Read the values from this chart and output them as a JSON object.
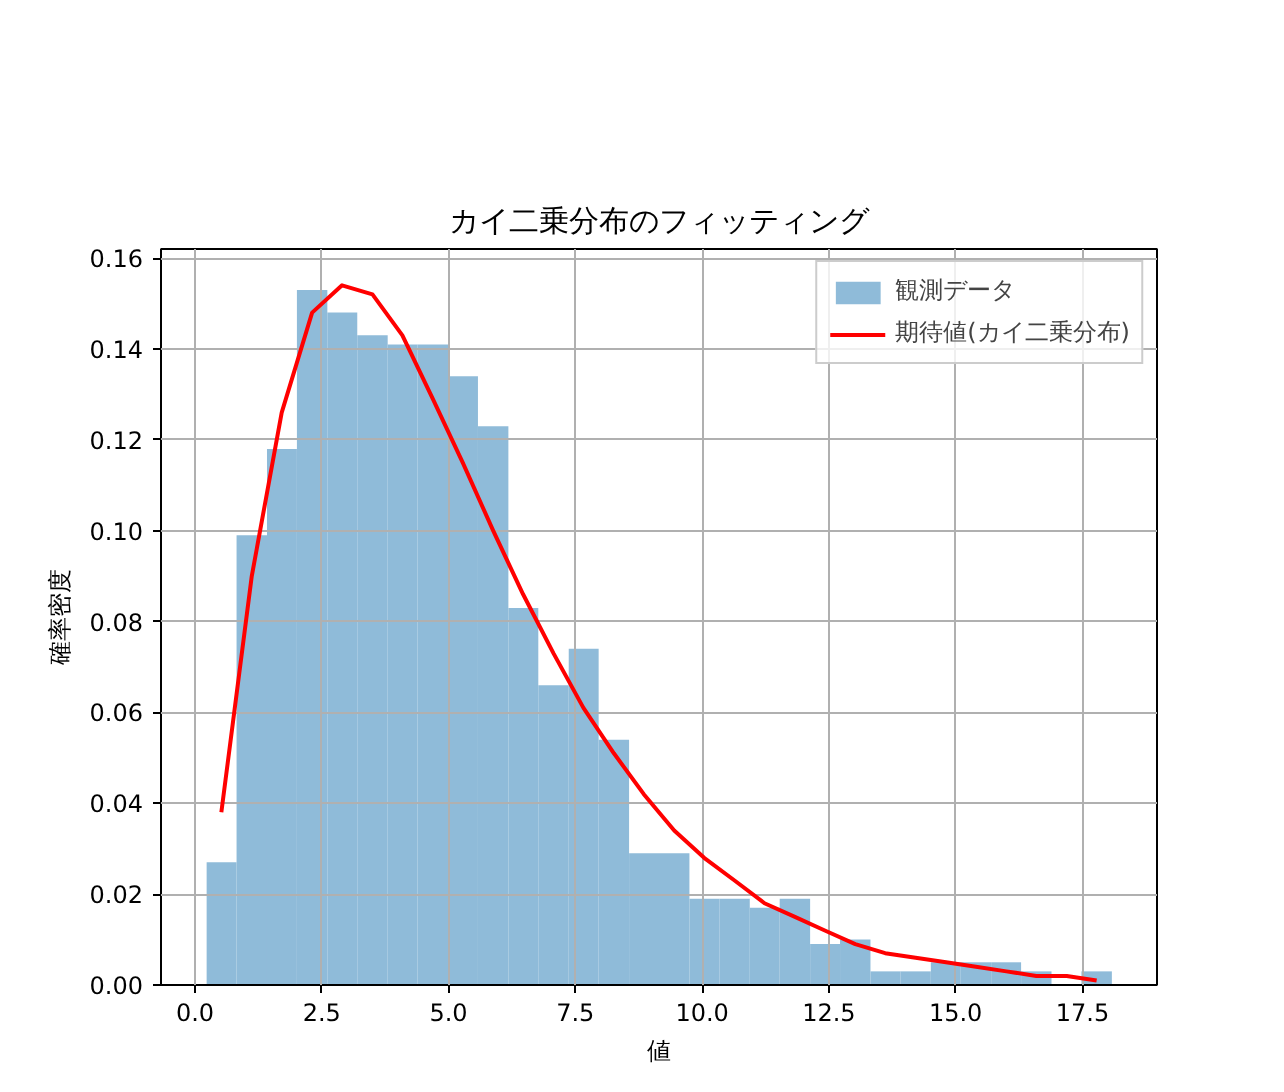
{
  "chart_data": {
    "type": "histogram",
    "title": "カイ二乗分布のフィッティング",
    "xlabel": "値",
    "ylabel": "確率密度",
    "bins": [
      0.23,
      0.82,
      1.42,
      2.01,
      2.61,
      3.2,
      3.8,
      4.39,
      4.99,
      5.58,
      6.18,
      6.77,
      7.37,
      7.96,
      8.56,
      9.15,
      9.75,
      10.34,
      10.94,
      11.53,
      12.13,
      12.72,
      13.32,
      13.91,
      14.51,
      15.1,
      15.7,
      16.29,
      16.89,
      17.48,
      18.08
    ],
    "series": [
      {
        "name": "観測データ",
        "color": "#8fbbd9",
        "values": [
          0.027,
          0.099,
          0.118,
          0.153,
          0.148,
          0.143,
          0.141,
          0.141,
          0.134,
          0.123,
          0.083,
          0.066,
          0.074,
          0.054,
          0.029,
          0.029,
          0.019,
          0.019,
          0.017,
          0.019,
          0.009,
          0.01,
          0.003,
          0.003,
          0.005,
          0.005,
          0.005,
          0.003,
          0,
          0.003
        ]
      },
      {
        "type": "line",
        "name": "期待値(カイ二乗分布)",
        "color": "#ff0000",
        "x": [
          0.52,
          1.12,
          1.71,
          2.31,
          2.9,
          3.5,
          4.09,
          4.69,
          5.28,
          5.88,
          6.47,
          7.07,
          7.66,
          8.26,
          8.85,
          9.45,
          10.04,
          10.64,
          11.23,
          11.83,
          12.42,
          13.02,
          13.61,
          14.21,
          14.81,
          15.4,
          16.0,
          16.59,
          17.19,
          17.78
        ],
        "values": [
          0.038,
          0.09,
          0.126,
          0.148,
          0.154,
          0.152,
          0.143,
          0.129,
          0.115,
          0.1,
          0.086,
          0.073,
          0.061,
          0.051,
          0.042,
          0.034,
          0.028,
          0.023,
          0.018,
          0.015,
          0.012,
          0.009,
          0.007,
          0.006,
          0.005,
          0.004,
          0.003,
          0.002,
          0.002,
          0.001
        ]
      }
    ],
    "xlim": [
      -0.67,
      18.97
    ],
    "ylim": [
      0,
      0.162
    ],
    "xticks": [
      {
        "value": 0,
        "label": "0.0"
      },
      2.5,
      {
        "value": 5,
        "label": "5.0"
      },
      7.5,
      {
        "value": 10,
        "label": "10.0"
      },
      12.5,
      {
        "value": 15,
        "label": "15.0"
      },
      17.5
    ],
    "yticks": [
      {
        "value": 0,
        "label": "0.00"
      },
      0.02,
      0.04,
      0.06,
      0.08,
      {
        "value": 0.1,
        "label": "0.10"
      },
      0.12,
      0.14,
      0.16
    ],
    "grid": true,
    "legend": "top right"
  }
}
